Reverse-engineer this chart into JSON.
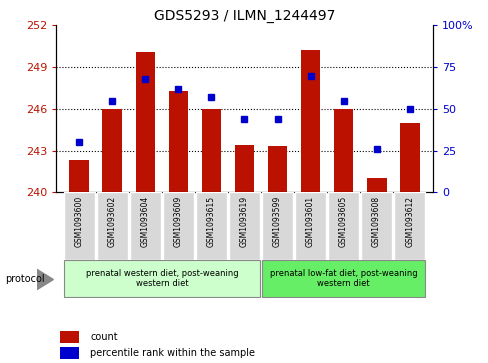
{
  "title": "GDS5293 / ILMN_1244497",
  "samples": [
    "GSM1093600",
    "GSM1093602",
    "GSM1093604",
    "GSM1093609",
    "GSM1093615",
    "GSM1093619",
    "GSM1093599",
    "GSM1093601",
    "GSM1093605",
    "GSM1093608",
    "GSM1093612"
  ],
  "counts": [
    242.3,
    246.0,
    250.1,
    247.3,
    246.0,
    243.4,
    243.3,
    250.2,
    246.0,
    241.0,
    245.0
  ],
  "percentiles": [
    30,
    55,
    68,
    62,
    57,
    44,
    44,
    70,
    55,
    26,
    50
  ],
  "ylim_left": [
    240,
    252
  ],
  "ylim_right": [
    0,
    100
  ],
  "yticks_left": [
    240,
    243,
    246,
    249,
    252
  ],
  "yticks_right": [
    0,
    25,
    50,
    75,
    100
  ],
  "bar_color": "#bb1100",
  "dot_color": "#0000cc",
  "group1_label": "prenatal western diet, post-weaning\nwestern diet",
  "group2_label": "prenatal low-fat diet, post-weaning\nwestern diet",
  "group1_count": 6,
  "group2_count": 5,
  "protocol_label": "protocol",
  "legend_count_label": "count",
  "legend_percentile_label": "percentile rank within the sample",
  "group1_bg": "#ccffcc",
  "group2_bg": "#66ee66",
  "sample_bg": "#d8d8d8",
  "plot_border": "#000000"
}
